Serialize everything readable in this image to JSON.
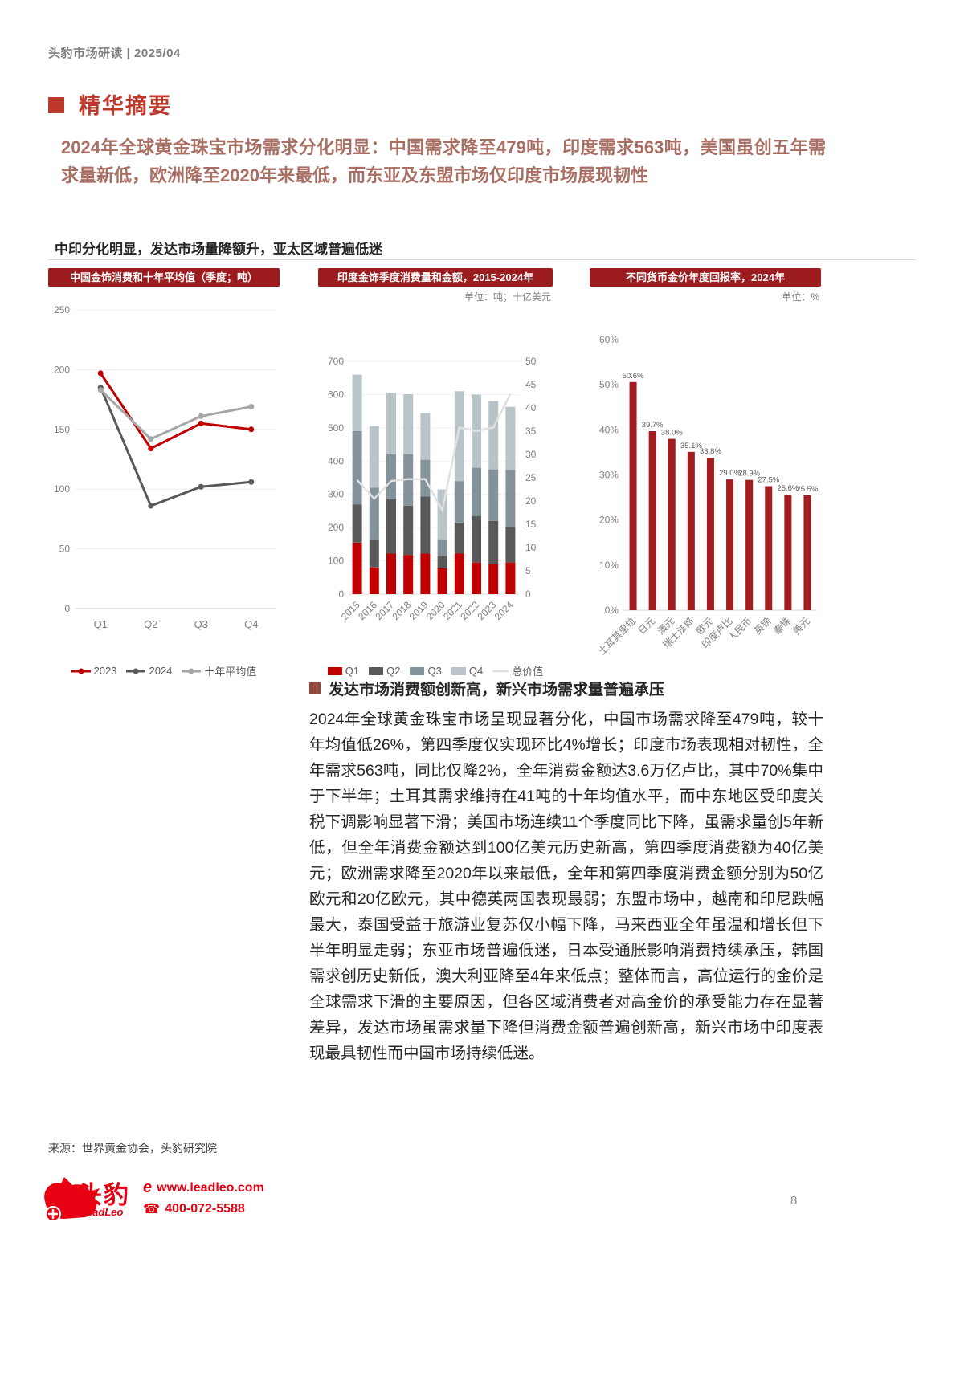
{
  "page": {
    "header": "头豹市场研读 | 2025/04",
    "page_number": "8",
    "source_note": "来源：世界黄金协会，头豹研究院"
  },
  "summary": {
    "section_title": "精华摘要",
    "highlight": "2024年全球黄金珠宝市场需求分化明显：中国需求降至479吨，印度需求563吨，美国虽创五年需求量新低，欧洲降至2020年来最低，而东亚及东盟市场仅印度市场展现韧性"
  },
  "figure": {
    "caption": "中印分化明显，发达市场量降额升，亚太区域普遍低迷"
  },
  "analysis": {
    "heading": "发达市场消费额创新高，新兴市场需求量普遍承压",
    "body": "2024年全球黄金珠宝市场呈现显著分化，中国市场需求降至479吨，较十年均值低26%，第四季度仅实现环比4%增长；印度市场表现相对韧性，全年需求563吨，同比仅降2%，全年消费金额达3.6万亿卢比，其中70%集中于下半年；土耳其需求维持在41吨的十年均值水平，而中东地区受印度关税下调影响显著下滑；美国市场连续11个季度同比下降，虽需求量创5年新低，但全年消费金额达到100亿美元历史新高，第四季度消费额为40亿美元；欧洲需求降至2020年以来最低，全年和第四季度消费金额分别为50亿欧元和20亿欧元，其中德英两国表现最弱；东盟市场中，越南和印尼跌幅最大，泰国受益于旅游业复苏仅小幅下降，马来西亚全年虽温和增长但下半年明显走弱；东亚市场普遍低迷，日本受通胀影响消费持续承压，韩国需求创历史新低，澳大利亚降至4年来低点；整体而言，高位运行的金价是全球需求下滑的主要原因，但各区域消费者对高金价的承受能力存在显著差异，发达市场虽需求量下降但消费金额普遍创新高，新兴市场中印度表现最具韧性而中国市场持续低迷。"
  },
  "footer": {
    "brand": "头豹",
    "brand_sub": "LeadLeo",
    "e_mark": "e",
    "website": "www.leadleo.com",
    "phone": "400-072-5588"
  },
  "colors": {
    "banner_red": "#9b1b1e",
    "accent_red": "#bf382c",
    "summary_red": "#a96f64",
    "chart_red": "#c00000",
    "fx_bar_red": "#a31c1f",
    "brand_red": "#e60012"
  },
  "chart_data": [
    {
      "type": "line",
      "title": "中国金饰消费和十年平均值（季度；吨）",
      "categories": [
        "Q1",
        "Q2",
        "Q3",
        "Q4"
      ],
      "series": [
        {
          "name": "2023",
          "color": "#c00000",
          "values": [
            197,
            134,
            155,
            150
          ]
        },
        {
          "name": "2024",
          "color": "#595959",
          "values": [
            185,
            86,
            102,
            106
          ]
        },
        {
          "name": "十年平均值",
          "color": "#a6a6a6",
          "values": [
            183,
            142,
            161,
            169
          ]
        }
      ],
      "ylim": [
        0,
        250
      ],
      "ytick": 50,
      "grid": true,
      "legend_position": "bottom"
    },
    {
      "type": "stacked-bar+line",
      "title": "印度金饰季度消费量和金额，2015-2024年",
      "unit": "单位：吨；十亿美元",
      "categories": [
        "2015",
        "2016",
        "2017",
        "2018",
        "2019",
        "2020",
        "2021",
        "2022",
        "2023",
        "2024"
      ],
      "series": [
        {
          "name": "Q1",
          "color": "#c00000",
          "values": [
            155,
            80,
            122,
            118,
            122,
            78,
            122,
            95,
            90,
            95
          ]
        },
        {
          "name": "Q2",
          "color": "#595959",
          "values": [
            115,
            85,
            163,
            148,
            172,
            37,
            93,
            140,
            130,
            107
          ]
        },
        {
          "name": "Q3",
          "color": "#83929b",
          "values": [
            220,
            155,
            135,
            155,
            110,
            50,
            125,
            145,
            155,
            171
          ]
        },
        {
          "name": "Q4",
          "color": "#b9c4c9",
          "values": [
            170,
            185,
            185,
            180,
            140,
            150,
            270,
            220,
            205,
            190
          ]
        }
      ],
      "line_series": {
        "name": "总价值",
        "color": "#e0e0e0",
        "axis": "right",
        "values": [
          24.5,
          20.5,
          24.3,
          24.7,
          24.7,
          18,
          35.8,
          35,
          35.8,
          43
        ]
      },
      "ylim_left": [
        0,
        700
      ],
      "ytick_left": 100,
      "ylim_right": [
        0,
        50
      ],
      "ytick_right": 5,
      "grid": true,
      "legend_position": "bottom"
    },
    {
      "type": "bar",
      "title": "不同货币金价年度回报率，2024年",
      "unit": "单位：%",
      "categories": [
        "土耳其里拉",
        "日元",
        "澳元",
        "瑞士法郎",
        "欧元",
        "印度卢比",
        "人民币",
        "英镑",
        "泰铢",
        "美元"
      ],
      "values": [
        50.6,
        39.7,
        38.0,
        35.1,
        33.8,
        29.0,
        28.9,
        27.5,
        25.6,
        25.5
      ],
      "labels": [
        "50.6%",
        "39.7%",
        "38.0%",
        "35.1%",
        "33.8%",
        "29.0%",
        "28.9%",
        "27.5%",
        "25.6%",
        "25.5%"
      ],
      "bar_color": "#a31c1f",
      "ylim": [
        0,
        60
      ],
      "ytick": 10,
      "grid": false
    }
  ]
}
